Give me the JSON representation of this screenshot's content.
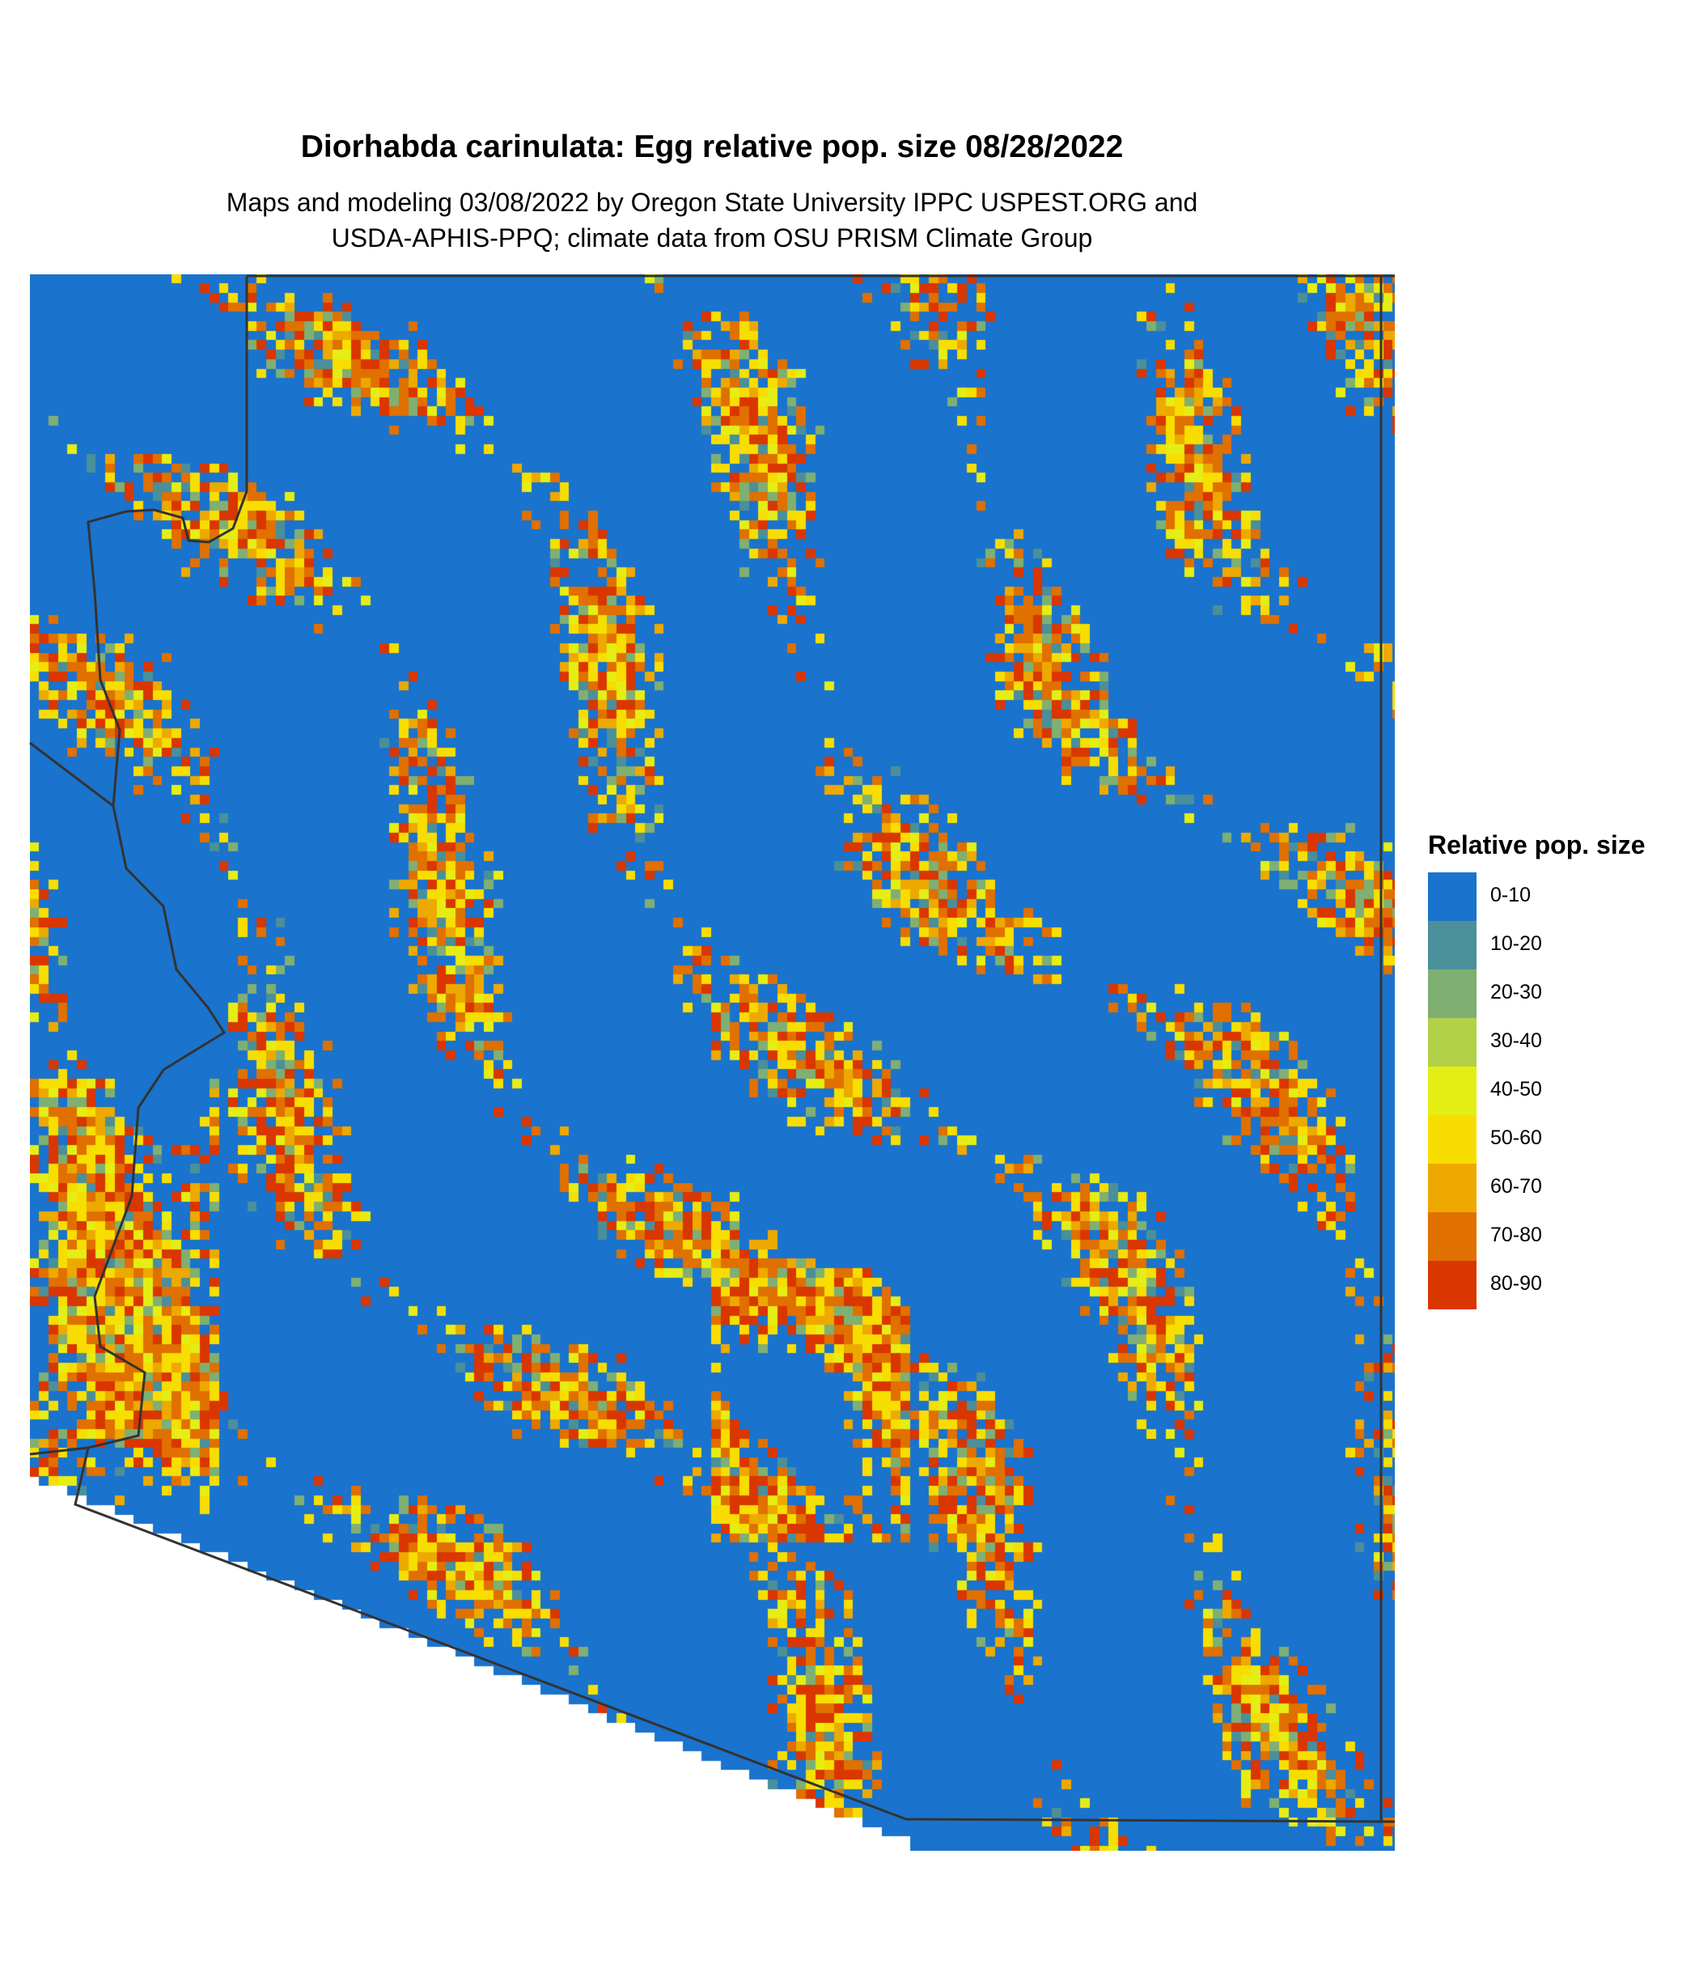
{
  "title": "Diorhabda carinulata: Egg relative pop. size 08/28/2022",
  "subtitle_line1": "Maps and modeling 03/08/2022 by Oregon State University IPPC USPEST.ORG and",
  "subtitle_line2": "USDA-APHIS-PPQ; climate data from OSU PRISM Climate Group",
  "legend": {
    "title": "Relative pop. size",
    "classes": [
      {
        "label": "0-10",
        "color": "#1A73CC"
      },
      {
        "label": "10-20",
        "color": "#4A8F9A"
      },
      {
        "label": "20-30",
        "color": "#7FAF73"
      },
      {
        "label": "30-40",
        "color": "#B2D048"
      },
      {
        "label": "40-50",
        "color": "#E5EE14"
      },
      {
        "label": "50-60",
        "color": "#F7DE00"
      },
      {
        "label": "60-70",
        "color": "#EDA900"
      },
      {
        "label": "70-80",
        "color": "#E07000"
      },
      {
        "label": "80-90",
        "color": "#D93600"
      }
    ]
  },
  "border_color": "#333333"
}
